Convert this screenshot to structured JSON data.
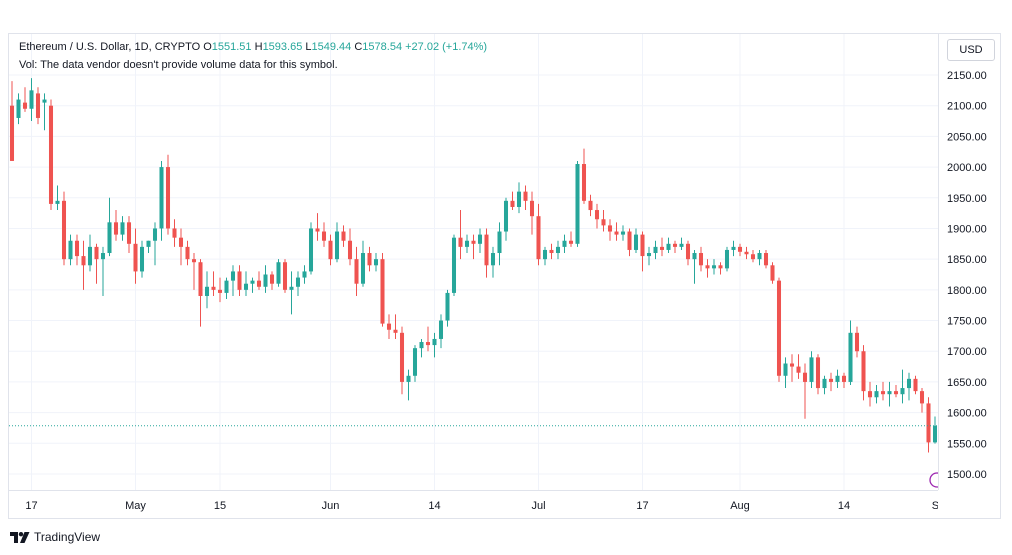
{
  "legend": {
    "symbol": "Ethereum / U.S. Dollar, 1D, CRYPTO",
    "o_label": "O",
    "o_value": "1551.51",
    "h_label": "H",
    "h_value": "1593.65",
    "l_label": "L",
    "l_value": "1549.44",
    "c_label": "C",
    "c_value": "1578.54",
    "change": "+27.02 (+1.74%)",
    "volume_note": "Vol: The data vendor doesn't provide volume data for this symbol."
  },
  "currency_button": "USD",
  "brand": "TradingView",
  "colors": {
    "up": "#26a69a",
    "down": "#ef5350",
    "grid": "#f0f3fa",
    "axis_text": "#131722"
  },
  "chart_data": {
    "type": "candlestick",
    "y_ticks": [
      "2150.00",
      "2100.00",
      "2050.00",
      "2000.00",
      "1950.00",
      "1900.00",
      "1850.00",
      "1800.00",
      "1750.00",
      "1700.00",
      "1650.00",
      "1600.00",
      "1550.00",
      "1500.00"
    ],
    "x_ticks": [
      "17",
      "May",
      "15",
      "Jun",
      "14",
      "Jul",
      "17",
      "Aug",
      "14",
      "Sep"
    ],
    "current_price": 1578.54,
    "ylim": [
      1480,
      2165
    ],
    "candles": [
      {
        "o": 2100,
        "h": 2140,
        "l": 2010,
        "c": 2010
      },
      {
        "o": 2080,
        "h": 2120,
        "l": 2070,
        "c": 2110
      },
      {
        "o": 2105,
        "h": 2130,
        "l": 2090,
        "c": 2095
      },
      {
        "o": 2095,
        "h": 2145,
        "l": 2075,
        "c": 2125
      },
      {
        "o": 2120,
        "h": 2130,
        "l": 2070,
        "c": 2080
      },
      {
        "o": 2105,
        "h": 2120,
        "l": 2060,
        "c": 2110
      },
      {
        "o": 2100,
        "h": 2110,
        "l": 1930,
        "c": 1940
      },
      {
        "o": 1940,
        "h": 1970,
        "l": 1930,
        "c": 1945
      },
      {
        "o": 1945,
        "h": 1960,
        "l": 1840,
        "c": 1850
      },
      {
        "o": 1850,
        "h": 1890,
        "l": 1840,
        "c": 1880
      },
      {
        "o": 1880,
        "h": 1890,
        "l": 1840,
        "c": 1855
      },
      {
        "o": 1855,
        "h": 1880,
        "l": 1800,
        "c": 1840
      },
      {
        "o": 1840,
        "h": 1890,
        "l": 1830,
        "c": 1870
      },
      {
        "o": 1870,
        "h": 1875,
        "l": 1810,
        "c": 1850
      },
      {
        "o": 1850,
        "h": 1870,
        "l": 1790,
        "c": 1860
      },
      {
        "o": 1860,
        "h": 1950,
        "l": 1855,
        "c": 1910
      },
      {
        "o": 1910,
        "h": 1930,
        "l": 1880,
        "c": 1890
      },
      {
        "o": 1890,
        "h": 1920,
        "l": 1880,
        "c": 1910
      },
      {
        "o": 1910,
        "h": 1920,
        "l": 1860,
        "c": 1875
      },
      {
        "o": 1875,
        "h": 1900,
        "l": 1810,
        "c": 1830
      },
      {
        "o": 1830,
        "h": 1880,
        "l": 1820,
        "c": 1870
      },
      {
        "o": 1870,
        "h": 1880,
        "l": 1860,
        "c": 1880
      },
      {
        "o": 1880,
        "h": 1910,
        "l": 1840,
        "c": 1900
      },
      {
        "o": 1900,
        "h": 2010,
        "l": 1880,
        "c": 2000
      },
      {
        "o": 2000,
        "h": 2020,
        "l": 1890,
        "c": 1900
      },
      {
        "o": 1900,
        "h": 1915,
        "l": 1870,
        "c": 1885
      },
      {
        "o": 1885,
        "h": 1900,
        "l": 1840,
        "c": 1870
      },
      {
        "o": 1870,
        "h": 1880,
        "l": 1840,
        "c": 1850
      },
      {
        "o": 1850,
        "h": 1860,
        "l": 1800,
        "c": 1845
      },
      {
        "o": 1845,
        "h": 1850,
        "l": 1740,
        "c": 1790
      },
      {
        "o": 1790,
        "h": 1830,
        "l": 1770,
        "c": 1805
      },
      {
        "o": 1805,
        "h": 1830,
        "l": 1790,
        "c": 1800
      },
      {
        "o": 1800,
        "h": 1820,
        "l": 1780,
        "c": 1795
      },
      {
        "o": 1795,
        "h": 1820,
        "l": 1785,
        "c": 1815
      },
      {
        "o": 1815,
        "h": 1840,
        "l": 1790,
        "c": 1830
      },
      {
        "o": 1830,
        "h": 1840,
        "l": 1790,
        "c": 1800
      },
      {
        "o": 1800,
        "h": 1830,
        "l": 1790,
        "c": 1810
      },
      {
        "o": 1810,
        "h": 1820,
        "l": 1795,
        "c": 1815
      },
      {
        "o": 1815,
        "h": 1830,
        "l": 1800,
        "c": 1805
      },
      {
        "o": 1805,
        "h": 1840,
        "l": 1795,
        "c": 1825
      },
      {
        "o": 1825,
        "h": 1830,
        "l": 1800,
        "c": 1810
      },
      {
        "o": 1810,
        "h": 1850,
        "l": 1805,
        "c": 1845
      },
      {
        "o": 1845,
        "h": 1850,
        "l": 1795,
        "c": 1800
      },
      {
        "o": 1800,
        "h": 1830,
        "l": 1760,
        "c": 1805
      },
      {
        "o": 1805,
        "h": 1830,
        "l": 1790,
        "c": 1820
      },
      {
        "o": 1820,
        "h": 1840,
        "l": 1810,
        "c": 1830
      },
      {
        "o": 1830,
        "h": 1910,
        "l": 1825,
        "c": 1900
      },
      {
        "o": 1900,
        "h": 1925,
        "l": 1880,
        "c": 1895
      },
      {
        "o": 1895,
        "h": 1910,
        "l": 1870,
        "c": 1880
      },
      {
        "o": 1880,
        "h": 1890,
        "l": 1840,
        "c": 1850
      },
      {
        "o": 1850,
        "h": 1910,
        "l": 1845,
        "c": 1895
      },
      {
        "o": 1895,
        "h": 1905,
        "l": 1870,
        "c": 1880
      },
      {
        "o": 1880,
        "h": 1900,
        "l": 1840,
        "c": 1850
      },
      {
        "o": 1850,
        "h": 1870,
        "l": 1790,
        "c": 1810
      },
      {
        "o": 1810,
        "h": 1880,
        "l": 1805,
        "c": 1860
      },
      {
        "o": 1860,
        "h": 1870,
        "l": 1830,
        "c": 1840
      },
      {
        "o": 1840,
        "h": 1860,
        "l": 1830,
        "c": 1850
      },
      {
        "o": 1850,
        "h": 1860,
        "l": 1740,
        "c": 1745
      },
      {
        "o": 1745,
        "h": 1760,
        "l": 1720,
        "c": 1735
      },
      {
        "o": 1735,
        "h": 1760,
        "l": 1720,
        "c": 1730
      },
      {
        "o": 1730,
        "h": 1740,
        "l": 1630,
        "c": 1650
      },
      {
        "o": 1650,
        "h": 1670,
        "l": 1620,
        "c": 1660
      },
      {
        "o": 1660,
        "h": 1710,
        "l": 1650,
        "c": 1705
      },
      {
        "o": 1705,
        "h": 1720,
        "l": 1690,
        "c": 1715
      },
      {
        "o": 1715,
        "h": 1740,
        "l": 1700,
        "c": 1710
      },
      {
        "o": 1710,
        "h": 1730,
        "l": 1690,
        "c": 1720
      },
      {
        "o": 1720,
        "h": 1760,
        "l": 1705,
        "c": 1750
      },
      {
        "o": 1750,
        "h": 1800,
        "l": 1740,
        "c": 1795
      },
      {
        "o": 1795,
        "h": 1890,
        "l": 1790,
        "c": 1885
      },
      {
        "o": 1885,
        "h": 1930,
        "l": 1850,
        "c": 1870
      },
      {
        "o": 1870,
        "h": 1890,
        "l": 1860,
        "c": 1880
      },
      {
        "o": 1880,
        "h": 1890,
        "l": 1850,
        "c": 1875
      },
      {
        "o": 1875,
        "h": 1900,
        "l": 1860,
        "c": 1890
      },
      {
        "o": 1890,
        "h": 1900,
        "l": 1820,
        "c": 1840
      },
      {
        "o": 1840,
        "h": 1870,
        "l": 1820,
        "c": 1860
      },
      {
        "o": 1860,
        "h": 1910,
        "l": 1840,
        "c": 1895
      },
      {
        "o": 1895,
        "h": 1950,
        "l": 1880,
        "c": 1945
      },
      {
        "o": 1945,
        "h": 1960,
        "l": 1930,
        "c": 1935
      },
      {
        "o": 1935,
        "h": 1975,
        "l": 1925,
        "c": 1960
      },
      {
        "o": 1960,
        "h": 1970,
        "l": 1930,
        "c": 1945
      },
      {
        "o": 1945,
        "h": 1960,
        "l": 1890,
        "c": 1920
      },
      {
        "o": 1920,
        "h": 1940,
        "l": 1840,
        "c": 1850
      },
      {
        "o": 1850,
        "h": 1870,
        "l": 1840,
        "c": 1865
      },
      {
        "o": 1865,
        "h": 1875,
        "l": 1850,
        "c": 1860
      },
      {
        "o": 1860,
        "h": 1880,
        "l": 1850,
        "c": 1870
      },
      {
        "o": 1870,
        "h": 1890,
        "l": 1860,
        "c": 1880
      },
      {
        "o": 1880,
        "h": 1895,
        "l": 1870,
        "c": 1875
      },
      {
        "o": 1875,
        "h": 2010,
        "l": 1870,
        "c": 2005
      },
      {
        "o": 2005,
        "h": 2030,
        "l": 1940,
        "c": 1945
      },
      {
        "o": 1945,
        "h": 1955,
        "l": 1920,
        "c": 1930
      },
      {
        "o": 1930,
        "h": 1940,
        "l": 1900,
        "c": 1915
      },
      {
        "o": 1915,
        "h": 1930,
        "l": 1895,
        "c": 1905
      },
      {
        "o": 1905,
        "h": 1915,
        "l": 1880,
        "c": 1895
      },
      {
        "o": 1895,
        "h": 1910,
        "l": 1880,
        "c": 1890
      },
      {
        "o": 1890,
        "h": 1905,
        "l": 1880,
        "c": 1895
      },
      {
        "o": 1895,
        "h": 1900,
        "l": 1855,
        "c": 1865
      },
      {
        "o": 1865,
        "h": 1900,
        "l": 1860,
        "c": 1890
      },
      {
        "o": 1890,
        "h": 1895,
        "l": 1830,
        "c": 1855
      },
      {
        "o": 1855,
        "h": 1870,
        "l": 1840,
        "c": 1860
      },
      {
        "o": 1860,
        "h": 1880,
        "l": 1850,
        "c": 1870
      },
      {
        "o": 1870,
        "h": 1885,
        "l": 1855,
        "c": 1865
      },
      {
        "o": 1865,
        "h": 1885,
        "l": 1860,
        "c": 1875
      },
      {
        "o": 1875,
        "h": 1880,
        "l": 1860,
        "c": 1870
      },
      {
        "o": 1870,
        "h": 1885,
        "l": 1865,
        "c": 1875
      },
      {
        "o": 1875,
        "h": 1880,
        "l": 1840,
        "c": 1850
      },
      {
        "o": 1850,
        "h": 1865,
        "l": 1810,
        "c": 1860
      },
      {
        "o": 1860,
        "h": 1870,
        "l": 1830,
        "c": 1840
      },
      {
        "o": 1840,
        "h": 1850,
        "l": 1820,
        "c": 1835
      },
      {
        "o": 1835,
        "h": 1850,
        "l": 1825,
        "c": 1840
      },
      {
        "o": 1840,
        "h": 1845,
        "l": 1825,
        "c": 1835
      },
      {
        "o": 1835,
        "h": 1870,
        "l": 1830,
        "c": 1865
      },
      {
        "o": 1865,
        "h": 1880,
        "l": 1855,
        "c": 1870
      },
      {
        "o": 1870,
        "h": 1875,
        "l": 1855,
        "c": 1862
      },
      {
        "o": 1862,
        "h": 1870,
        "l": 1850,
        "c": 1858
      },
      {
        "o": 1858,
        "h": 1865,
        "l": 1845,
        "c": 1850
      },
      {
        "o": 1850,
        "h": 1865,
        "l": 1840,
        "c": 1860
      },
      {
        "o": 1860,
        "h": 1865,
        "l": 1835,
        "c": 1840
      },
      {
        "o": 1840,
        "h": 1845,
        "l": 1810,
        "c": 1815
      },
      {
        "o": 1815,
        "h": 1820,
        "l": 1650,
        "c": 1660
      },
      {
        "o": 1660,
        "h": 1690,
        "l": 1640,
        "c": 1680
      },
      {
        "o": 1680,
        "h": 1695,
        "l": 1650,
        "c": 1675
      },
      {
        "o": 1675,
        "h": 1695,
        "l": 1655,
        "c": 1665
      },
      {
        "o": 1665,
        "h": 1680,
        "l": 1590,
        "c": 1650
      },
      {
        "o": 1650,
        "h": 1700,
        "l": 1640,
        "c": 1690
      },
      {
        "o": 1690,
        "h": 1695,
        "l": 1630,
        "c": 1640
      },
      {
        "o": 1640,
        "h": 1660,
        "l": 1630,
        "c": 1655
      },
      {
        "o": 1655,
        "h": 1665,
        "l": 1635,
        "c": 1650
      },
      {
        "o": 1650,
        "h": 1670,
        "l": 1640,
        "c": 1660
      },
      {
        "o": 1660,
        "h": 1665,
        "l": 1640,
        "c": 1650
      },
      {
        "o": 1650,
        "h": 1750,
        "l": 1645,
        "c": 1730
      },
      {
        "o": 1730,
        "h": 1740,
        "l": 1690,
        "c": 1700
      },
      {
        "o": 1700,
        "h": 1710,
        "l": 1620,
        "c": 1635
      },
      {
        "o": 1635,
        "h": 1650,
        "l": 1610,
        "c": 1625
      },
      {
        "o": 1625,
        "h": 1645,
        "l": 1615,
        "c": 1635
      },
      {
        "o": 1635,
        "h": 1650,
        "l": 1620,
        "c": 1630
      },
      {
        "o": 1630,
        "h": 1650,
        "l": 1610,
        "c": 1635
      },
      {
        "o": 1635,
        "h": 1645,
        "l": 1625,
        "c": 1630
      },
      {
        "o": 1630,
        "h": 1670,
        "l": 1615,
        "c": 1640
      },
      {
        "o": 1640,
        "h": 1665,
        "l": 1620,
        "c": 1655
      },
      {
        "o": 1655,
        "h": 1660,
        "l": 1630,
        "c": 1635
      },
      {
        "o": 1635,
        "h": 1640,
        "l": 1600,
        "c": 1615
      },
      {
        "o": 1615,
        "h": 1625,
        "l": 1535,
        "c": 1551.51
      },
      {
        "o": 1551.51,
        "h": 1593.65,
        "l": 1549.44,
        "c": 1578.54
      }
    ]
  }
}
